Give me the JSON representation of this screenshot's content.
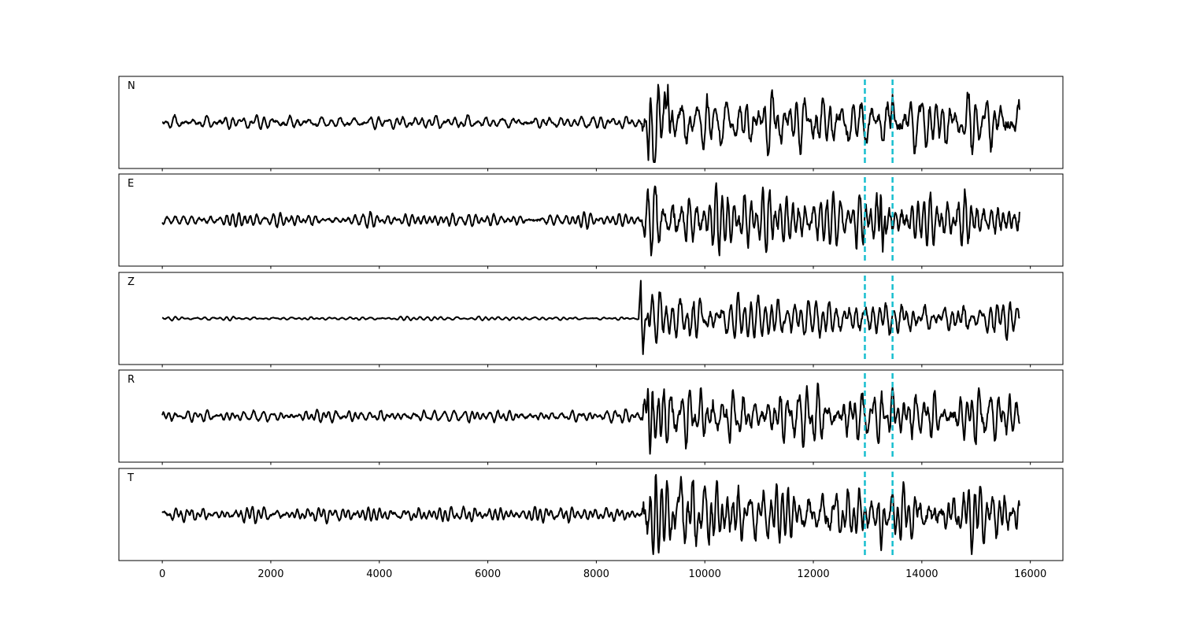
{
  "chart_data": {
    "type": "line",
    "subtype": "stacked seismogram traces (5 components)",
    "title": "",
    "xlabel": "",
    "ylabel": "",
    "xlim": [
      -800,
      16600
    ],
    "x_ticks": [
      0,
      2000,
      4000,
      6000,
      8000,
      10000,
      12000,
      14000,
      16000
    ],
    "x_tick_labels": [
      "0",
      "2000",
      "4000",
      "6000",
      "8000",
      "10000",
      "12000",
      "14000",
      "16000"
    ],
    "y_ticks_shown": false,
    "sample_range": [
      0,
      15800
    ],
    "event_onset_x": 8850,
    "vertical_markers": {
      "x": [
        12950,
        13460
      ],
      "color": "#17BECF",
      "style": "dashed"
    },
    "line_color": "#000000",
    "panels": [
      {
        "label": "N",
        "noise_amp": 0.12,
        "signal_amp": 0.78,
        "spikes": [
          [
            8960,
            -0.95
          ],
          [
            9320,
            0.95
          ],
          [
            13460,
            0.7
          ]
        ]
      },
      {
        "label": "E",
        "noise_amp": 0.11,
        "signal_amp": 0.75,
        "spikes": [
          [
            9080,
            0.85
          ],
          [
            13250,
            1.0
          ],
          [
            13280,
            -0.8
          ]
        ]
      },
      {
        "label": "Z",
        "noise_amp": 0.03,
        "signal_amp": 0.55,
        "spikes": [
          [
            8820,
            0.95
          ],
          [
            8860,
            -0.9
          ],
          [
            9030,
            0.6
          ]
        ]
      },
      {
        "label": "R",
        "noise_amp": 0.11,
        "signal_amp": 0.72,
        "spikes": [
          [
            8960,
            1.0
          ],
          [
            8990,
            -0.95
          ],
          [
            13460,
            0.72
          ]
        ]
      },
      {
        "label": "T",
        "noise_amp": 0.12,
        "signal_amp": 0.74,
        "spikes": [
          [
            9050,
            -1.0
          ],
          [
            9560,
            0.95
          ],
          [
            13250,
            -0.9
          ]
        ]
      }
    ]
  }
}
